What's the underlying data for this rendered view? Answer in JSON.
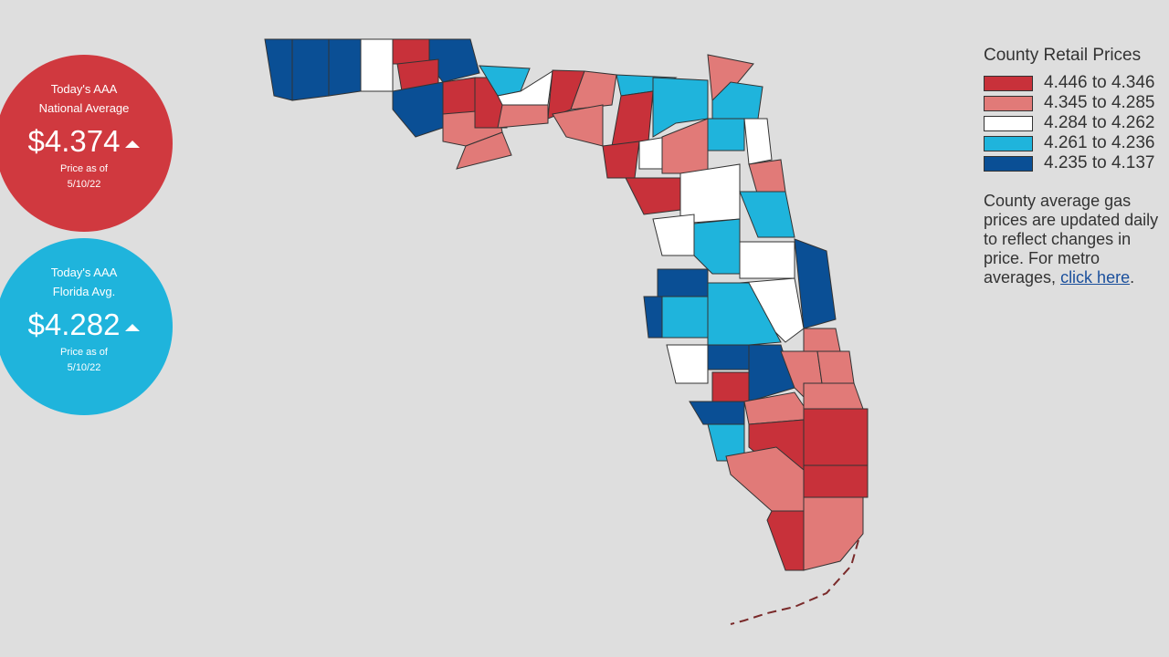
{
  "national_card": {
    "line1": "Today's AAA",
    "line2": "National Average",
    "price": "$4.374",
    "date_label": "Price as of",
    "date": "5/10/22"
  },
  "florida_card": {
    "line1": "Today's AAA",
    "line2": "Florida Avg.",
    "price": "$4.282",
    "date_label": "Price as of",
    "date": "5/10/22"
  },
  "legend": {
    "title": "County Retail Prices",
    "items": [
      {
        "label": "4.446 to 4.346",
        "color": "#c8313a"
      },
      {
        "label": "4.345 to 4.285",
        "color": "#e17a78"
      },
      {
        "label": "4.284 to 4.262",
        "color": "#ffffff"
      },
      {
        "label": "4.261 to 4.236",
        "color": "#1fb4dc"
      },
      {
        "label": "4.235 to 4.137",
        "color": "#0a4f95"
      }
    ]
  },
  "note": {
    "text": "County average gas prices are updated daily to reflect changes in price. For metro averages, ",
    "link": "click here",
    "end": "."
  }
}
